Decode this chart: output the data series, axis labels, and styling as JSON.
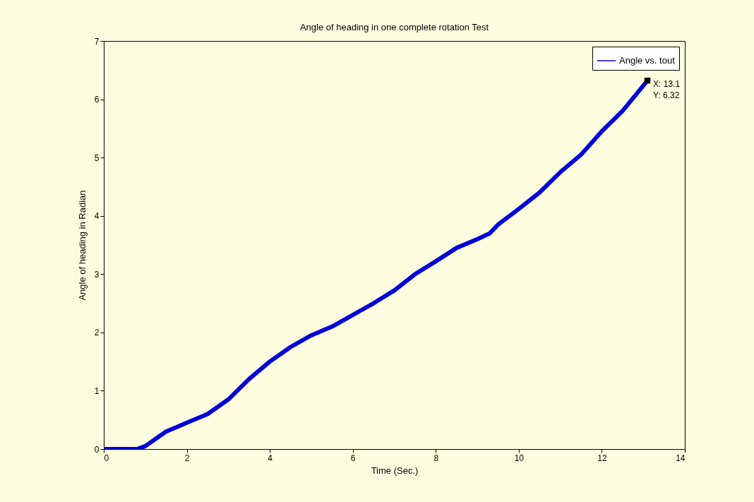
{
  "chart_data": {
    "type": "line",
    "title": "Angle of heading in one complete rotation Test",
    "xlabel": "Time (Sec.)",
    "ylabel": "Angle of heading in Radian",
    "x": [
      0,
      0.4,
      0.8,
      1,
      1.5,
      2,
      2.5,
      3,
      3.5,
      4,
      4.5,
      5,
      5.5,
      6,
      6.5,
      7,
      7.5,
      8,
      8.5,
      9,
      9.3,
      9.5,
      10,
      10.5,
      11,
      11.5,
      12,
      12.5,
      13.1
    ],
    "series": [
      {
        "name": "Angle vs. tout",
        "color": "#0000dd",
        "values": [
          0,
          0,
          0,
          0.05,
          0.3,
          0.45,
          0.6,
          0.85,
          1.2,
          1.5,
          1.75,
          1.95,
          2.1,
          2.3,
          2.5,
          2.72,
          3.0,
          3.22,
          3.45,
          3.6,
          3.7,
          3.85,
          4.12,
          4.4,
          4.75,
          5.05,
          5.45,
          5.8,
          6.32
        ]
      }
    ],
    "xlim": [
      0,
      14
    ],
    "xticks": [
      0,
      2,
      4,
      6,
      8,
      10,
      12,
      14
    ],
    "ylim": [
      0,
      7
    ],
    "yticks": [
      0,
      1,
      2,
      3,
      4,
      5,
      6,
      7
    ],
    "grid": false,
    "legend": "top right",
    "marker": "none",
    "line_style": "solid",
    "annotations": [
      {
        "text": "X: 13.1\nY: 6.32",
        "x": 13.1,
        "y": 6.32
      }
    ]
  }
}
